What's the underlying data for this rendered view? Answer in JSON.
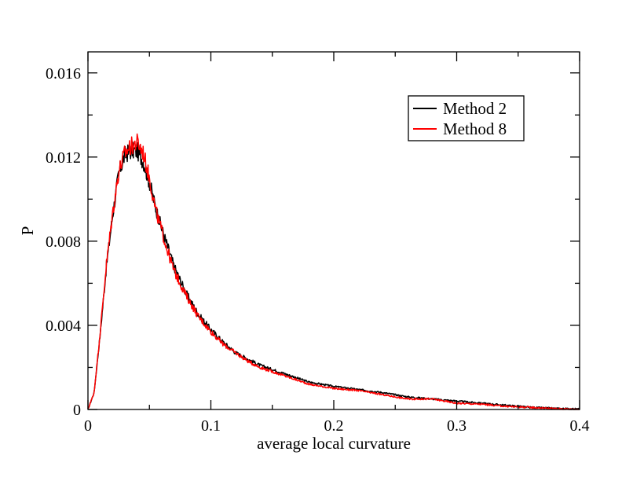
{
  "chart_data": {
    "type": "line",
    "title": "",
    "xlabel": "average local curvature",
    "ylabel": "P",
    "xlim": [
      0,
      0.4
    ],
    "ylim": [
      0,
      0.017
    ],
    "x_ticks": [
      "0",
      "0.1",
      "0.2",
      "0.3",
      "0.4"
    ],
    "y_ticks": [
      "0",
      "0.004",
      "0.008",
      "0.012",
      "0.016"
    ],
    "grid": false,
    "legend_position": "top-right",
    "series": [
      {
        "name": "Method 2",
        "color": "#000000",
        "x": [
          0,
          0.005,
          0.01,
          0.015,
          0.02,
          0.025,
          0.03,
          0.035,
          0.04,
          0.045,
          0.05,
          0.055,
          0.06,
          0.065,
          0.07,
          0.08,
          0.09,
          0.1,
          0.11,
          0.12,
          0.13,
          0.14,
          0.15,
          0.16,
          0.18,
          0.2,
          0.22,
          0.24,
          0.26,
          0.28,
          0.3,
          0.32,
          0.34,
          0.36,
          0.38,
          0.4
        ],
        "y": [
          0,
          0.0008,
          0.0036,
          0.0068,
          0.0092,
          0.0112,
          0.0121,
          0.0123,
          0.0123,
          0.0118,
          0.0108,
          0.0096,
          0.0086,
          0.0077,
          0.0068,
          0.0055,
          0.0045,
          0.0038,
          0.0032,
          0.0027,
          0.0024,
          0.0021,
          0.0019,
          0.0017,
          0.0013,
          0.0011,
          0.00095,
          0.0008,
          0.0006,
          0.0005,
          0.0004,
          0.0003,
          0.0002,
          0.0001,
          5e-05,
          2e-05
        ]
      },
      {
        "name": "Method 8",
        "color": "#ff0000",
        "x": [
          0,
          0.005,
          0.01,
          0.015,
          0.02,
          0.025,
          0.03,
          0.035,
          0.04,
          0.045,
          0.05,
          0.055,
          0.06,
          0.065,
          0.07,
          0.08,
          0.09,
          0.1,
          0.11,
          0.12,
          0.13,
          0.14,
          0.15,
          0.16,
          0.18,
          0.2,
          0.22,
          0.24,
          0.26,
          0.28,
          0.3,
          0.32,
          0.34,
          0.36,
          0.38,
          0.4
        ],
        "y": [
          0,
          0.0008,
          0.0037,
          0.0069,
          0.0093,
          0.0113,
          0.0122,
          0.0125,
          0.0127,
          0.0122,
          0.011,
          0.0095,
          0.0085,
          0.0075,
          0.0066,
          0.0054,
          0.0044,
          0.0037,
          0.0031,
          0.0027,
          0.0023,
          0.002,
          0.0018,
          0.0016,
          0.0012,
          0.001,
          0.0009,
          0.0007,
          0.0005,
          0.0005,
          0.0003,
          0.00025,
          0.00015,
          0.0001,
          4e-05,
          1e-05
        ]
      }
    ]
  }
}
